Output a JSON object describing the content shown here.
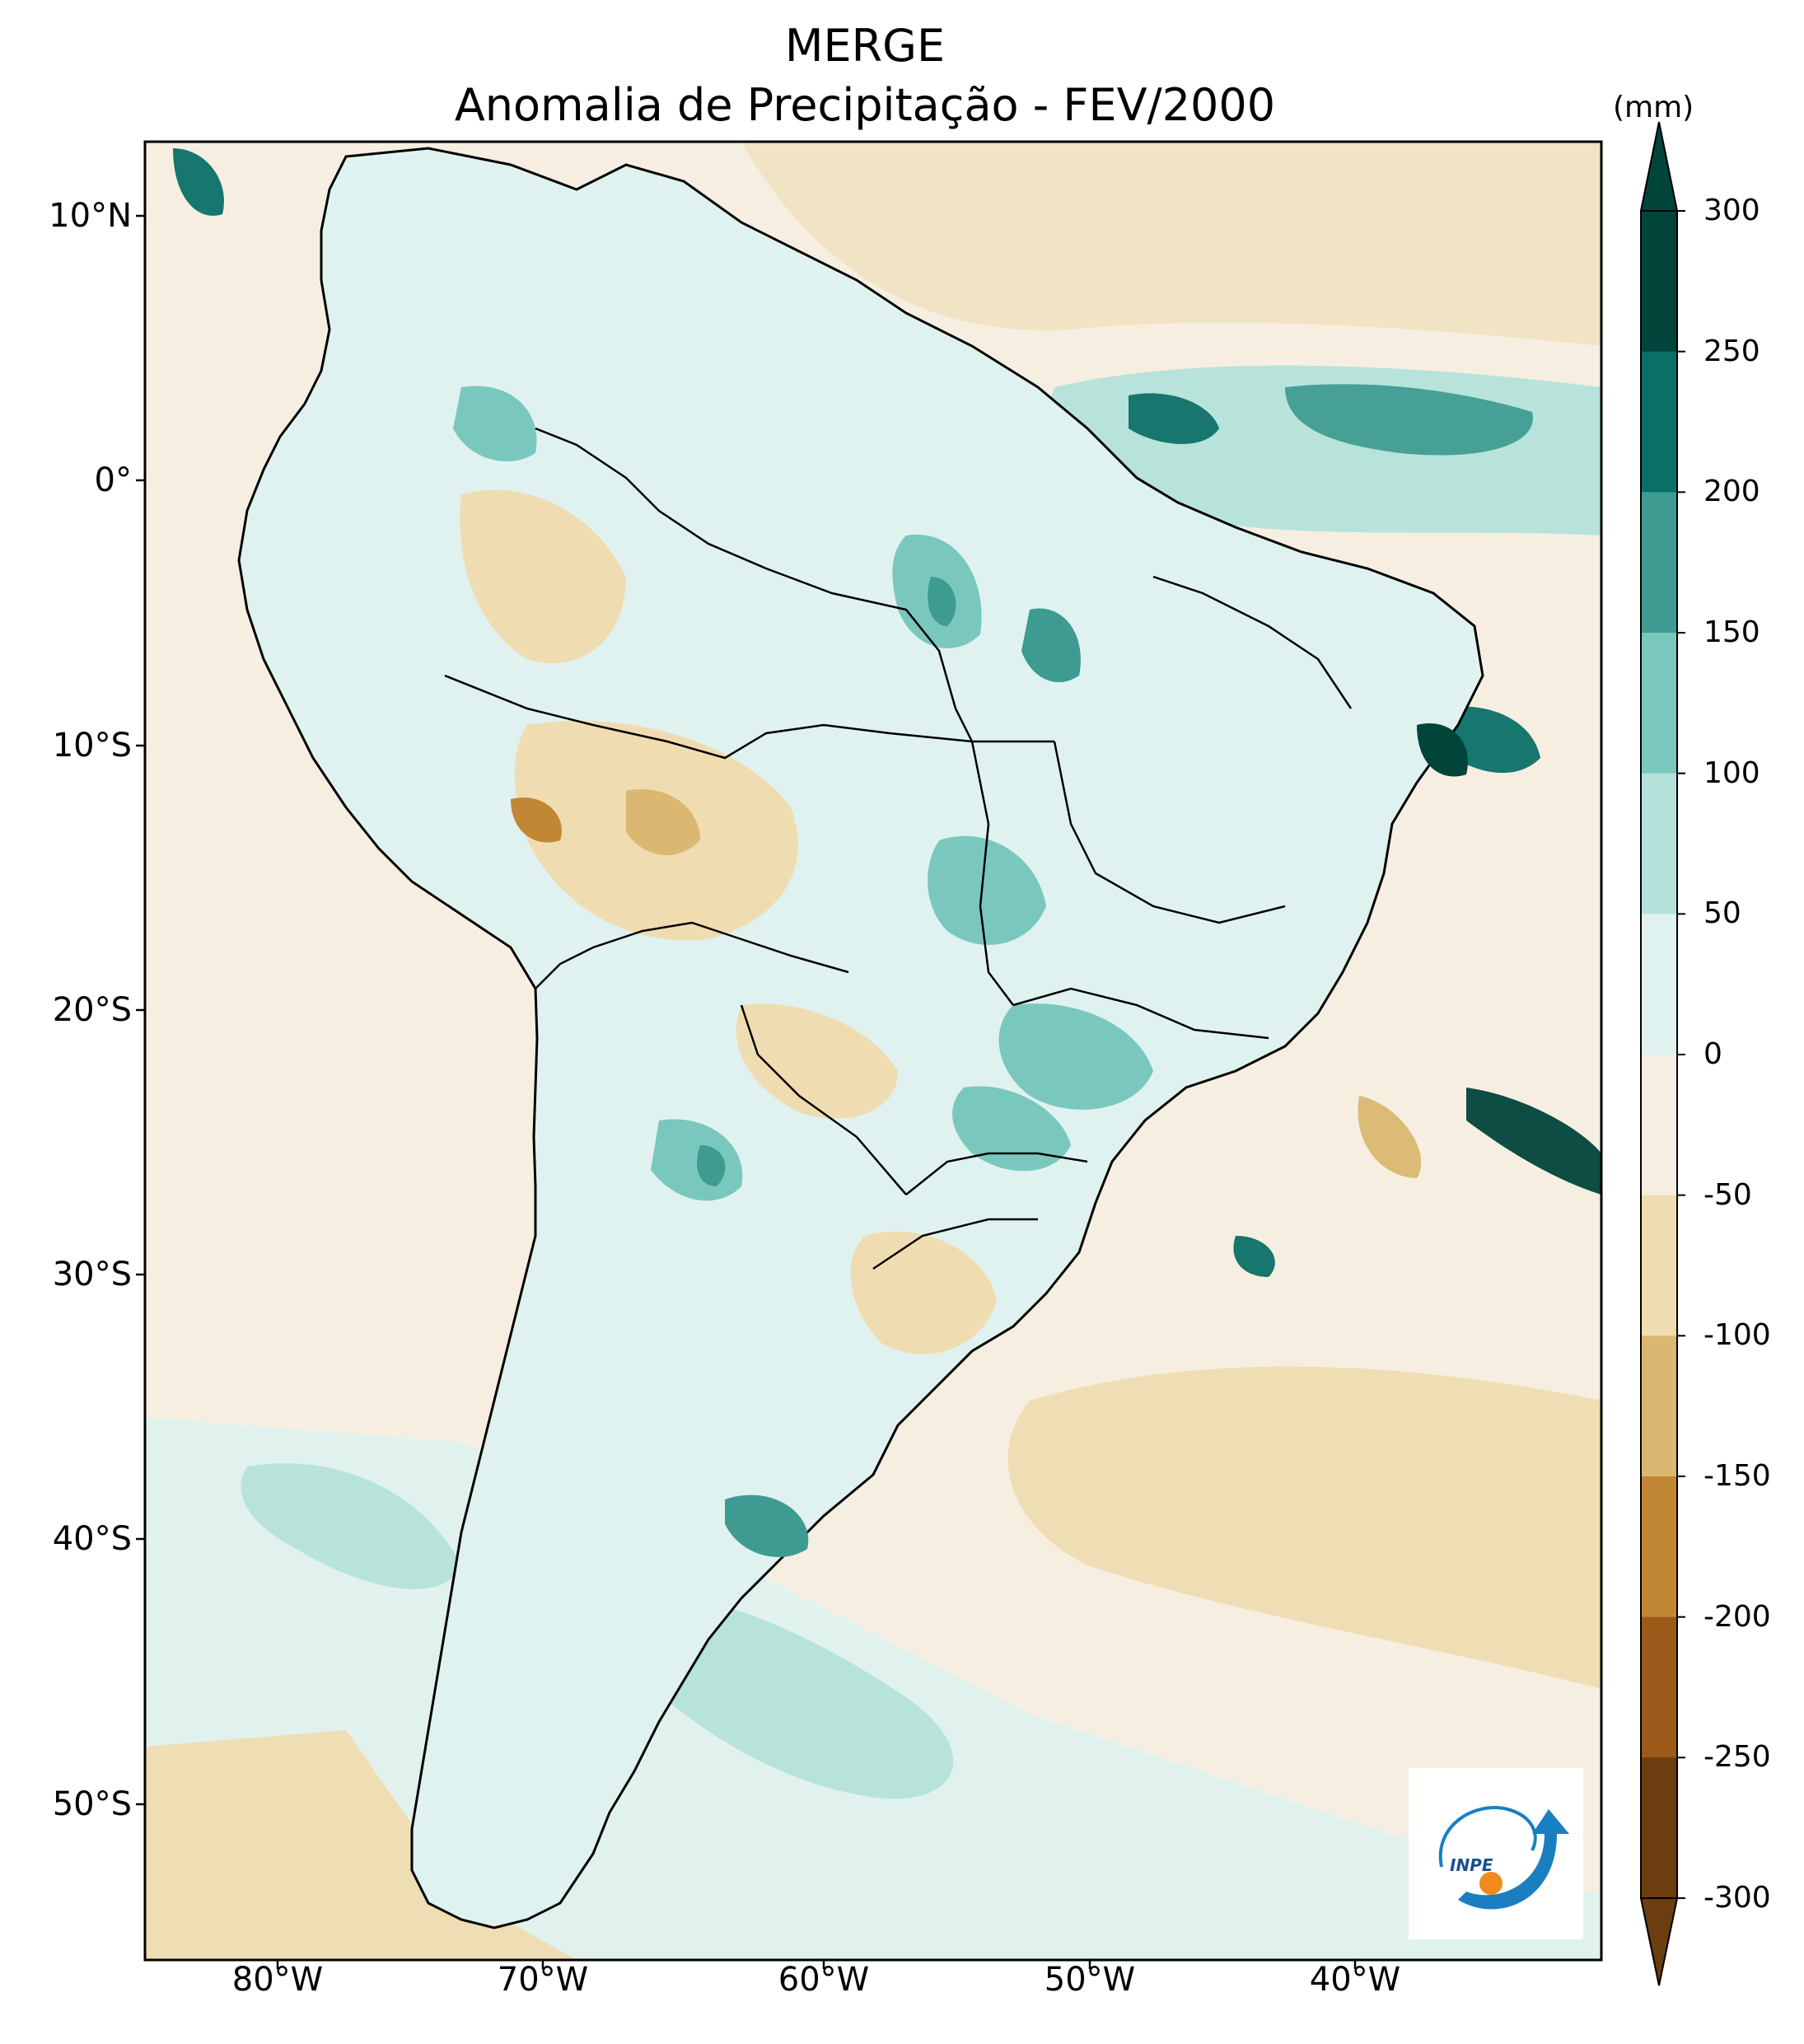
{
  "title": "MERGE",
  "subtitle": "Anomalia de Precipitação - FEV/2000",
  "colorbar": {
    "unit": "(mm)",
    "ticks": [
      "300",
      "250",
      "200",
      "150",
      "100",
      "50",
      "0",
      "-50",
      "-100",
      "-150",
      "-200",
      "-250",
      "-300"
    ],
    "colors": [
      "#00443a",
      "#0b6f67",
      "#3e9b91",
      "#7ac8bd",
      "#b4e2db",
      "#e0f2ef",
      "#f6efe1",
      "#efdcb1",
      "#dbb871",
      "#c18735",
      "#9b5a19",
      "#6b3d0f"
    ]
  },
  "axes": {
    "lat_labels": [
      "10°N",
      "0°",
      "10°S",
      "20°S",
      "30°S",
      "40°S",
      "50°S"
    ],
    "lon_labels": [
      "80°W",
      "70°W",
      "60°W",
      "50°W",
      "40°W"
    ]
  },
  "map": {
    "region": "South America",
    "extent": {
      "lon": [
        -85,
        -30
      ],
      "lat": [
        -56,
        13
      ]
    },
    "ocean_fill": "#f6efe1",
    "land_fill": "#e0f2ef"
  },
  "logo": {
    "text": "INPE"
  }
}
